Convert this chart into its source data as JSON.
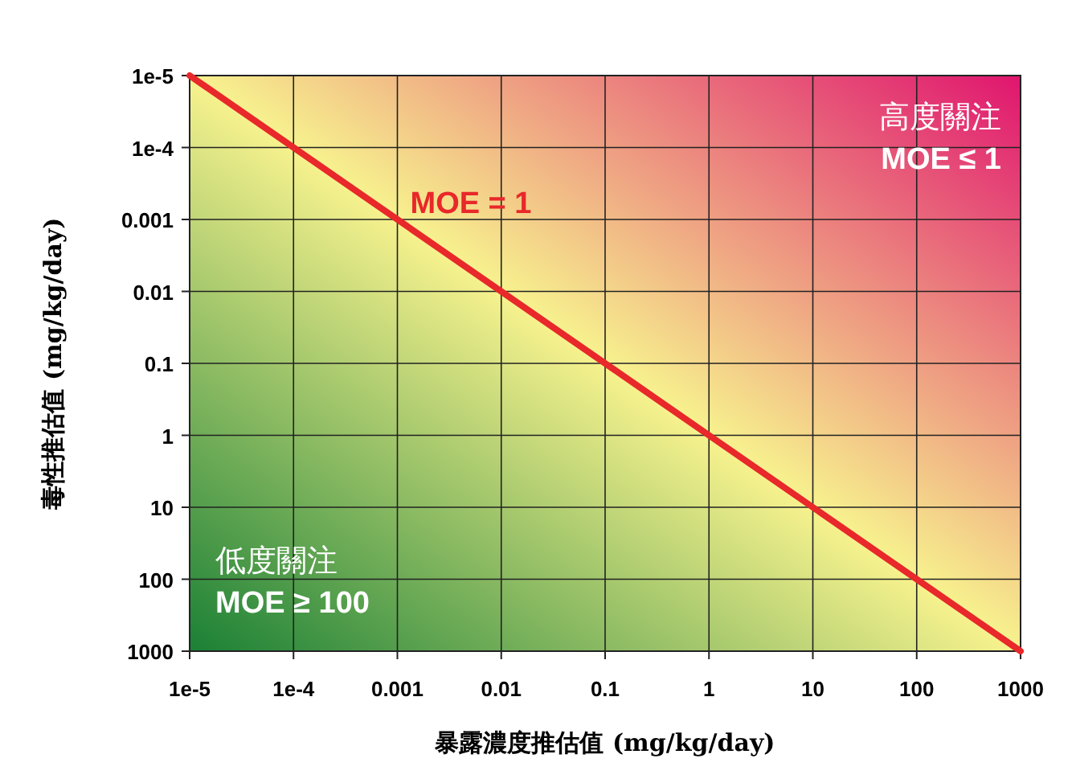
{
  "chart_data": {
    "type": "line",
    "xlabel": "暴露濃度推估值 (mg/kg/day)",
    "ylabel": "毒性推估值 (mg/kg/day)",
    "x": [
      1e-05,
      1000
    ],
    "series": [
      {
        "color": "#e8282a",
        "values": [
          1e-05,
          1000
        ]
      }
    ],
    "log": "xy",
    "xlim": [
      1e-05,
      1000
    ],
    "ylim": [
      1000,
      1e-05
    ],
    "xticks": [
      {
        "value": 1e-05,
        "label": "1e-5"
      },
      {
        "value": 0.0001,
        "label": "1e-4"
      },
      0.001,
      0.01,
      0.1,
      1,
      10,
      100,
      1000
    ],
    "yticks": [
      {
        "value": 1e-05,
        "label": "1e-5"
      },
      {
        "value": 0.0001,
        "label": "1e-4"
      },
      0.001,
      0.01,
      0.1,
      1,
      10,
      100,
      1000
    ],
    "grid": true,
    "annotations": [
      {
        "text": "MOE = 1",
        "x": 0.001,
        "y": 0.001
      },
      "高度關注\nMOE ≤ 1",
      "低度關注\nMOE ≥ 100"
    ]
  }
}
